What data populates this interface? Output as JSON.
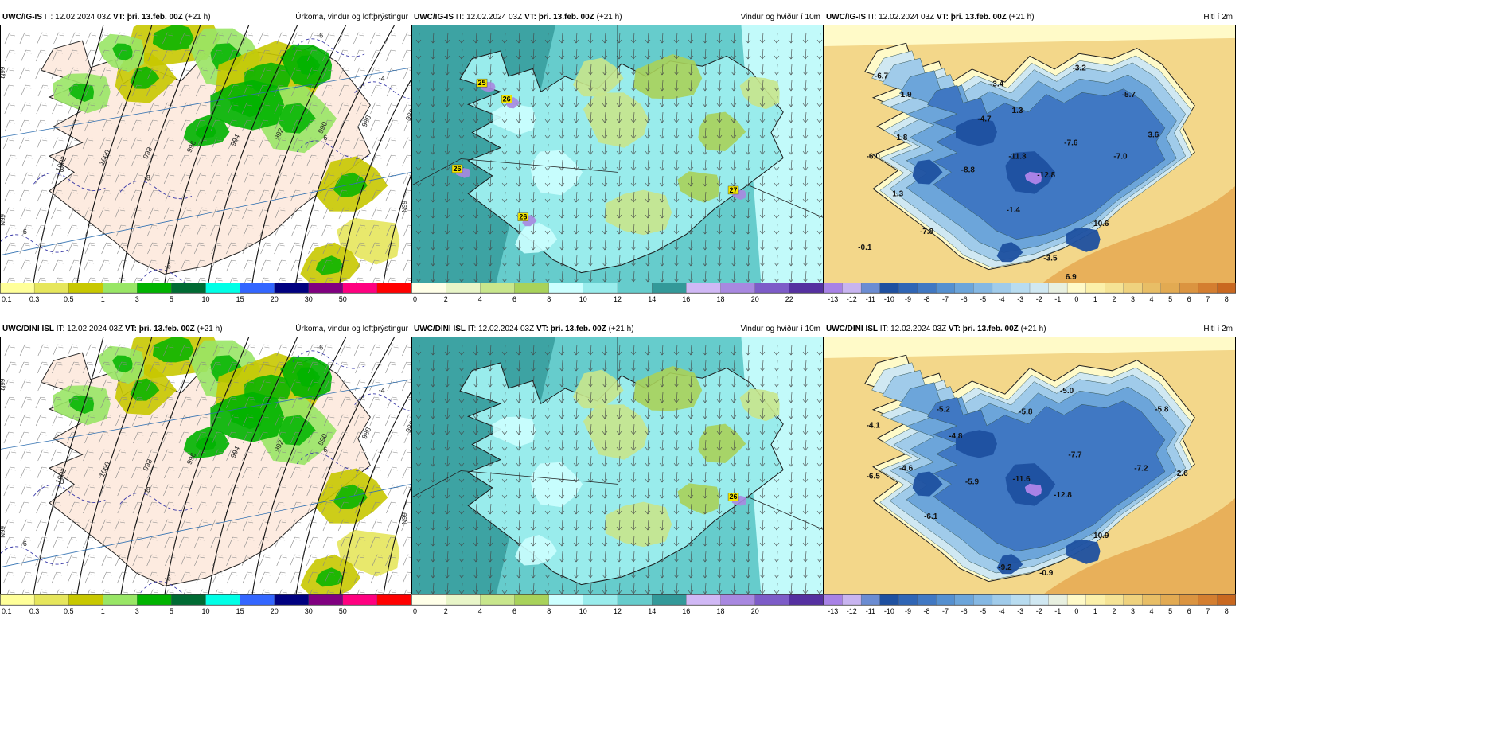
{
  "panels": [
    {
      "id": "p1",
      "type": "precip",
      "model": "UWC/IG-IS",
      "it_label": "IT:",
      "it_value": "12.02.2024 03Z",
      "vt_label": "VT:",
      "vt_value": "þri. 13.feb. 00Z",
      "lead": "(+21 h)",
      "product": "Úrkoma, vindur og loftþrýstingur",
      "isobars": [
        "1002",
        "1000",
        "998",
        "996",
        "994",
        "992",
        "990",
        "988",
        "986"
      ],
      "temp_labels": [
        "-6",
        "-4",
        "-6",
        "-8",
        "-8",
        "-6",
        "-6"
      ],
      "grid_labels": [
        "N99",
        "N99",
        "N99"
      ],
      "colorbar": [
        "0.1",
        "0.3",
        "0.5",
        "1",
        "3",
        "5",
        "10",
        "15",
        "20",
        "30",
        "50"
      ]
    },
    {
      "id": "p2",
      "type": "wind",
      "model": "UWC/IG-IS",
      "it_label": "IT:",
      "it_value": "12.02.2024 03Z",
      "vt_label": "VT:",
      "vt_value": "þri. 13.feb. 00Z",
      "lead": "(+21 h)",
      "product": "Vindur og hviður í 10m",
      "maxima": [
        "25",
        "26",
        "26",
        "26",
        "27"
      ],
      "colorbar": [
        "0",
        "2",
        "4",
        "6",
        "8",
        "10",
        "12",
        "14",
        "16",
        "18",
        "20",
        "22"
      ]
    },
    {
      "id": "p3",
      "type": "temp",
      "model": "UWC/IG-IS",
      "it_label": "IT:",
      "it_value": "12.02.2024 03Z",
      "vt_label": "VT:",
      "vt_value": "þri. 13.feb. 00Z",
      "lead": "(+21 h)",
      "product": "Hiti í 2m",
      "temps": [
        "-6.7",
        "1.9",
        "-3.4",
        "-3.2",
        "1.3",
        "-4.7",
        "-5.7",
        "1.8",
        "-7.6",
        "3.6",
        "-6.0",
        "-11.3",
        "-7.0",
        "-8.8",
        "-12.8",
        "1.3",
        "-1.4",
        "-10.6",
        "-7.8",
        "-0.1",
        "-3.5",
        "6.9",
        "-2.0"
      ],
      "colorbar": [
        "-13",
        "-12",
        "-11",
        "-10",
        "-9",
        "-8",
        "-7",
        "-6",
        "-5",
        "-4",
        "-3",
        "-2",
        "-1",
        "0",
        "1",
        "2",
        "3",
        "4",
        "5",
        "6",
        "7",
        "8"
      ]
    },
    {
      "id": "p4",
      "type": "precip",
      "model": "UWC/DINI ISL",
      "it_label": "IT:",
      "it_value": "12.02.2024 03Z",
      "vt_label": "VT:",
      "vt_value": "þri. 13.feb. 00Z",
      "lead": "(+21 h)",
      "product": "Úrkoma, vindur og loftþrýstingur",
      "isobars": [
        "1002",
        "1000",
        "998",
        "996",
        "994",
        "992",
        "990",
        "988",
        "986"
      ],
      "temp_labels": [
        "-6",
        "-4",
        "-6",
        "-8",
        "-8",
        "-6",
        "-6"
      ],
      "grid_labels": [
        "N99",
        "N99",
        "N99"
      ],
      "colorbar": [
        "0.1",
        "0.3",
        "0.5",
        "1",
        "3",
        "5",
        "10",
        "15",
        "20",
        "30",
        "50"
      ]
    },
    {
      "id": "p5",
      "type": "wind",
      "model": "UWC/DINI ISL",
      "it_label": "IT:",
      "it_value": "12.02.2024 03Z",
      "vt_label": "VT:",
      "vt_value": "þri. 13.feb. 00Z",
      "lead": "(+21 h)",
      "product": "Vindur og hviður í 10m",
      "maxima": [
        "26"
      ],
      "colorbar": [
        "0",
        "2",
        "4",
        "6",
        "8",
        "10",
        "12",
        "14",
        "16",
        "18",
        "20"
      ]
    },
    {
      "id": "p6",
      "type": "temp",
      "model": "UWC/DINI ISL",
      "it_label": "IT:",
      "it_value": "12.02.2024 03Z",
      "vt_label": "VT:",
      "vt_value": "þri. 13.feb. 00Z",
      "lead": "(+21 h)",
      "product": "Hiti í 2m",
      "temps": [
        "-5.0",
        "-5.2",
        "-5.8",
        "-5.8",
        "-4.1",
        "-4.8",
        "-7.7",
        "-4.6",
        "-7.2",
        "2.6",
        "-6.5",
        "-5.9",
        "-11.6",
        "-12.8",
        "-6.1",
        "-10.9",
        "-9.2",
        "-0.9"
      ],
      "colorbar": [
        "-13",
        "-12",
        "-11",
        "-10",
        "-9",
        "-8",
        "-7",
        "-6",
        "-5",
        "-4",
        "-3",
        "-2",
        "-1",
        "0",
        "1",
        "2",
        "3",
        "4",
        "5",
        "6",
        "7",
        "8"
      ]
    }
  ],
  "colors": {
    "precip": [
      "#ffff99",
      "#e6e65c",
      "#c8c800",
      "#99e666",
      "#00b300",
      "#006b33",
      "#00ffe6",
      "#3366ff",
      "#000080",
      "#800080",
      "#ff0080",
      "#ff0000"
    ],
    "wind": [
      "#ffffe8",
      "#e8f5c8",
      "#c8e68c",
      "#a8d25a",
      "#ccffff",
      "#99ecec",
      "#66cccc",
      "#339999",
      "#d0b8f5",
      "#a888e0",
      "#7d5cc8",
      "#5530a0"
    ],
    "temp": [
      "#a882e6",
      "#c8b4f0",
      "#6b8cd2",
      "#1e50a0",
      "#2f65b5",
      "#4078c3",
      "#5590d0",
      "#6ca5da",
      "#85b8e3",
      "#a0cbea",
      "#b8dcf0",
      "#d0e8f2",
      "#e8f0e0",
      "#fffac8",
      "#fbf0aa",
      "#f5e395",
      "#efd27e",
      "#e8be66",
      "#e2aa52",
      "#db9440",
      "#d47e30",
      "#c96820"
    ],
    "sea_temp": "#f3d78a",
    "land_precip": "#fdebe0"
  }
}
